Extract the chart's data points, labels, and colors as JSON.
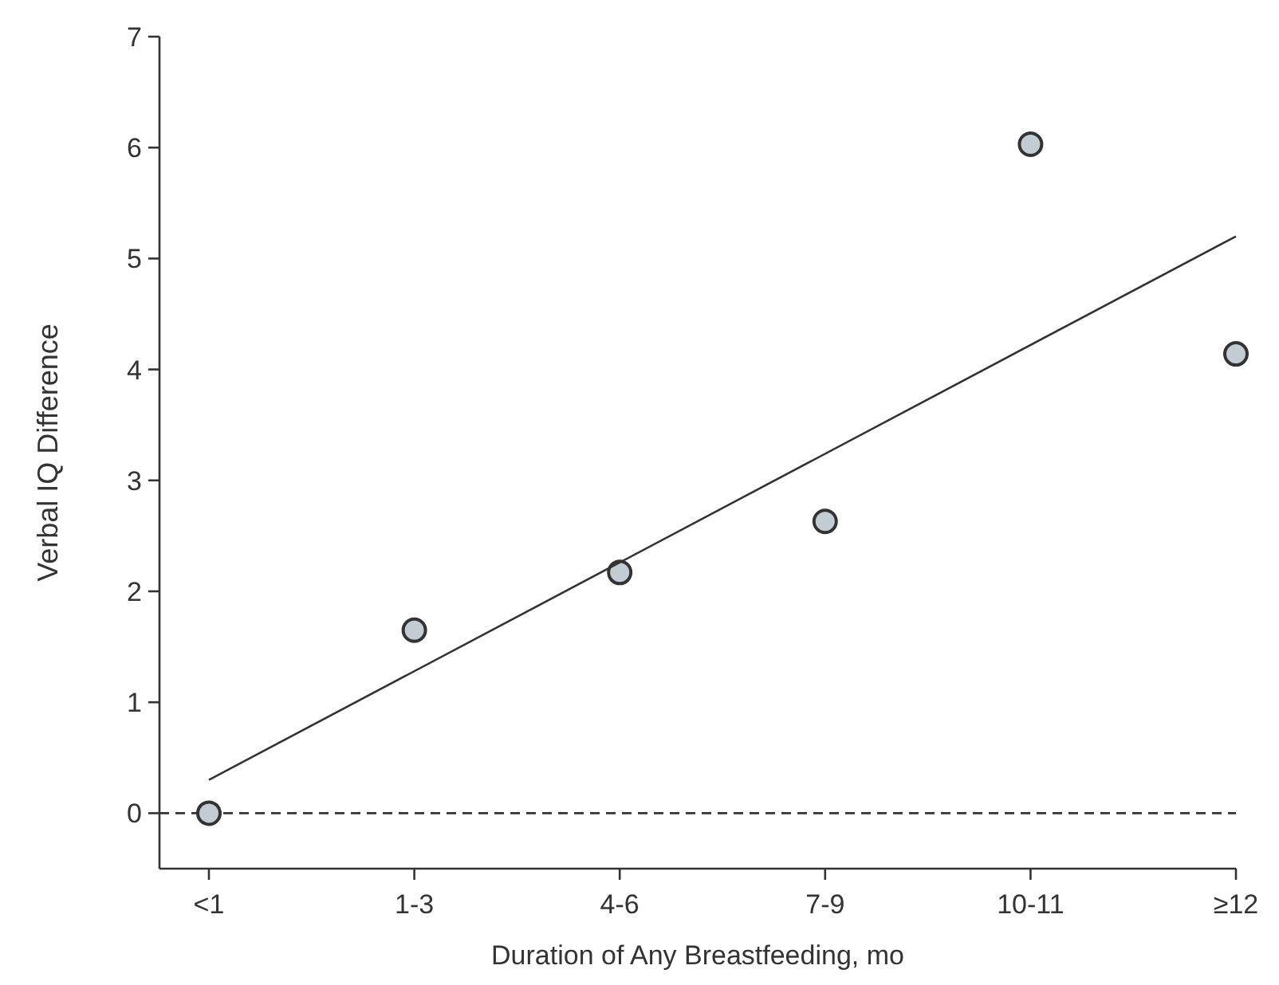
{
  "chart_data": {
    "type": "scatter",
    "xlabel": "Duration of Any Breastfeeding, mo",
    "ylabel": "Verbal IQ Difference",
    "categories": [
      "<1",
      "1-3",
      "4-6",
      "7-9",
      "10-11",
      "≥12"
    ],
    "series": [
      {
        "color": "#c3cbd3",
        "values": [
          0,
          1.65,
          2.17,
          2.63,
          6.03,
          4.14
        ],
        "marker": "circle"
      },
      {
        "type": "line",
        "color": "#333333",
        "x": [
          "<1",
          "≥12"
        ],
        "values": [
          0.3,
          5.2
        ],
        "marker": "none",
        "line_style": "solid"
      }
    ],
    "ylim": [
      -0.5,
      7
    ],
    "yticks": [
      0,
      1,
      2,
      3,
      4,
      5,
      6,
      7
    ],
    "grid": false,
    "ref_lines": [
      {
        "axis": "y",
        "value": 0,
        "label": null,
        "color": "#333333",
        "line_style": "dashed"
      }
    ]
  }
}
